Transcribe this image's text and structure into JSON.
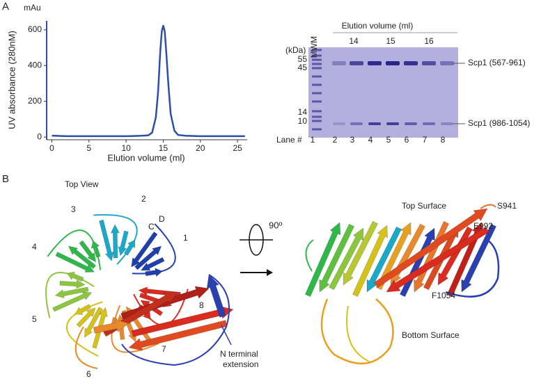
{
  "panels": {
    "a": "A",
    "b": "B"
  },
  "chart_data": {
    "type": "line",
    "unit_label": "mAu",
    "ylabel": "UV absorbance (280nM)",
    "xlabel": "Elution volume (ml)",
    "x": [
      0,
      2,
      4,
      6,
      8,
      10,
      11,
      12,
      13,
      13.5,
      14,
      14.3,
      14.6,
      14.8,
      15,
      15.2,
      15.4,
      15.7,
      16,
      16.5,
      17,
      18,
      20,
      22,
      24,
      26
    ],
    "values": [
      8,
      5,
      5,
      5,
      5,
      5,
      6,
      7,
      10,
      25,
      110,
      250,
      480,
      590,
      625,
      590,
      480,
      290,
      130,
      35,
      12,
      7,
      5,
      5,
      5,
      5
    ],
    "color": "#2b4fa8",
    "xlim": [
      -0.7,
      26.3
    ],
    "ylim": [
      -15,
      650
    ],
    "xticks": [
      0,
      5,
      10,
      15,
      20,
      25
    ],
    "yticks": [
      0,
      200,
      400,
      600
    ]
  },
  "gel": {
    "header": "Elution volume (ml)",
    "marker": "MWM",
    "fractions": [
      "14",
      "15",
      "16"
    ],
    "kda": "(kDa)",
    "ladder": [
      "55",
      "45",
      "14",
      "10"
    ],
    "bands": [
      "Scp1 (567-961)",
      "Scp1 (986-1054)"
    ],
    "lane_title": "Lane #",
    "lanes": [
      "1",
      "2",
      "3",
      "4",
      "5",
      "6",
      "7",
      "8"
    ]
  },
  "structure": {
    "top_view": "Top View",
    "blades": [
      "1",
      "2",
      "3",
      "4",
      "5",
      "6",
      "7",
      "8"
    ],
    "strands": [
      "D",
      "C"
    ],
    "rotation": "90º",
    "n_term": [
      "N terminal",
      "extension"
    ],
    "top_surface": "Top Surface",
    "bottom_surface": "Bottom Surface",
    "residues": [
      "S941",
      "E992",
      "F1054"
    ]
  }
}
